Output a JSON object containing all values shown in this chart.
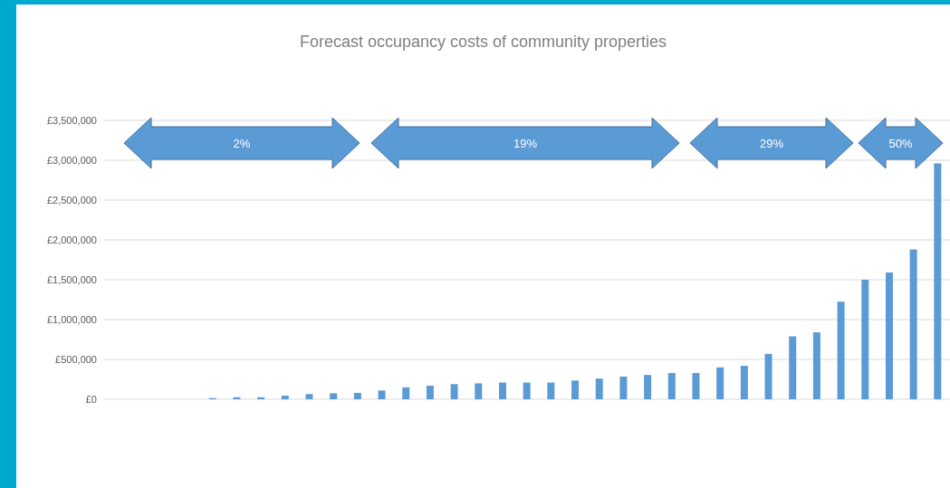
{
  "chart_data": {
    "type": "bar",
    "title": "Forecast occupancy costs of community properties",
    "categories": [
      null,
      null,
      null,
      null,
      null,
      null,
      null,
      null,
      null,
      null,
      null,
      null,
      null,
      null,
      null,
      null,
      null,
      null,
      null,
      null,
      null,
      null,
      null,
      null,
      null,
      null,
      null,
      null,
      null,
      null,
      null,
      null,
      null,
      null,
      null
    ],
    "values": [
      0,
      0,
      0,
      0,
      15000,
      25000,
      25000,
      45000,
      65000,
      75000,
      80000,
      110000,
      150000,
      170000,
      190000,
      200000,
      210000,
      210000,
      210000,
      235000,
      260000,
      285000,
      305000,
      330000,
      330000,
      400000,
      420000,
      570000,
      790000,
      840000,
      1225000,
      1500000,
      1590000,
      1880000,
      2960000
    ],
    "color": "#5b9bd5",
    "ylim": [
      0,
      3500000
    ],
    "yticks": [
      {
        "value": 0,
        "label": "£0"
      },
      {
        "value": 500000,
        "label": "£500,000"
      },
      {
        "value": 1000000,
        "label": "£1,000,000"
      },
      {
        "value": 1500000,
        "label": "£1,500,000"
      },
      {
        "value": 2000000,
        "label": "£2,000,000"
      },
      {
        "value": 2500000,
        "label": "£2,500,000"
      },
      {
        "value": 3000000,
        "label": "£3,000,000"
      },
      {
        "value": 3500000,
        "label": "£3,500,000"
      }
    ],
    "grid": "y",
    "annotations": [
      "2%",
      "19%",
      "29%",
      "50%"
    ]
  }
}
